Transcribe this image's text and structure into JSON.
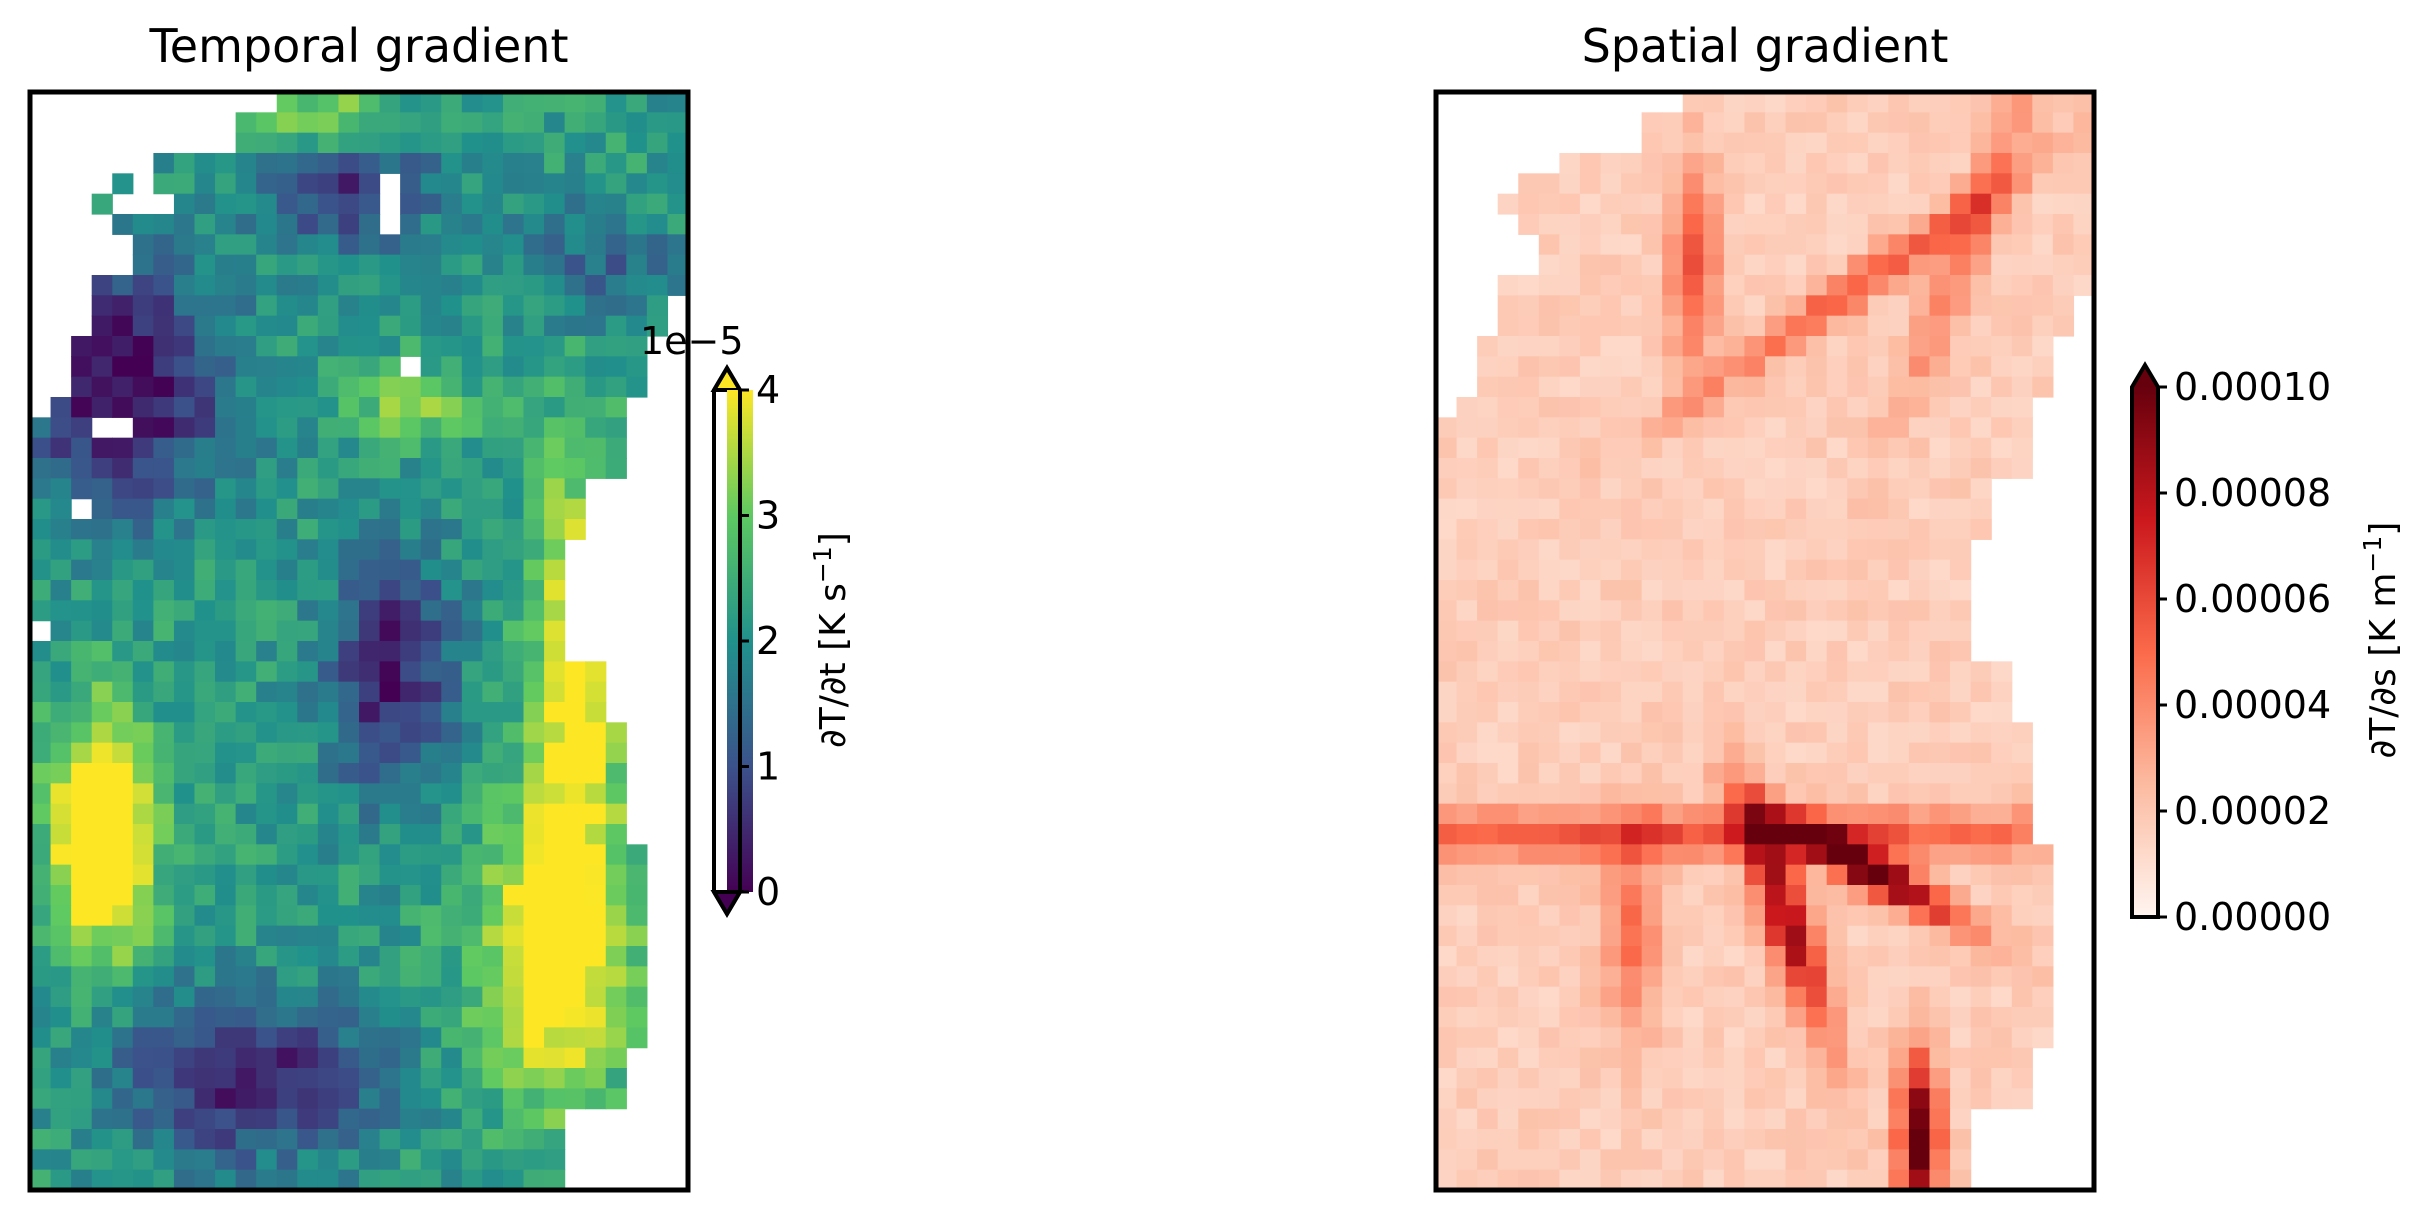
{
  "chart_data": [
    {
      "type": "heatmap",
      "title": "Temporal gradient",
      "grid": false,
      "colormap": "viridis",
      "colorbar": {
        "label_prefix": "∂T/∂t [K s",
        "label_exp": "−1",
        "label_suffix": "]",
        "offset_text": "1e−5",
        "range": [
          0,
          4
        ],
        "ticks": [
          "0",
          "1",
          "2",
          "3",
          "4"
        ],
        "extend": "both"
      },
      "data_description_values": {
        "rows": 54,
        "cols": 32,
        "nan_cells": [
          [
            4,
            17
          ],
          [
            5,
            17
          ],
          [
            6,
            17
          ],
          [
            5,
            4
          ],
          [
            4,
            5
          ],
          [
            5,
            5
          ],
          [
            5,
            6
          ],
          [
            13,
            18
          ],
          [
            16,
            3
          ],
          [
            16,
            4
          ],
          [
            20,
            2
          ],
          [
            26,
            0
          ]
        ]
      }
    },
    {
      "type": "heatmap",
      "title": "Spatial gradient",
      "grid": false,
      "colormap": "Reds",
      "colorbar": {
        "label_prefix": "∂T/∂s [K m",
        "label_exp": "−1",
        "label_suffix": "]",
        "range": [
          0,
          0.0001
        ],
        "ticks": [
          "0.00000",
          "0.00002",
          "0.00004",
          "0.00006",
          "0.00008",
          "0.00010"
        ],
        "extend": "max"
      },
      "data_description_values": {
        "rows": 54,
        "cols": 32
      }
    }
  ]
}
